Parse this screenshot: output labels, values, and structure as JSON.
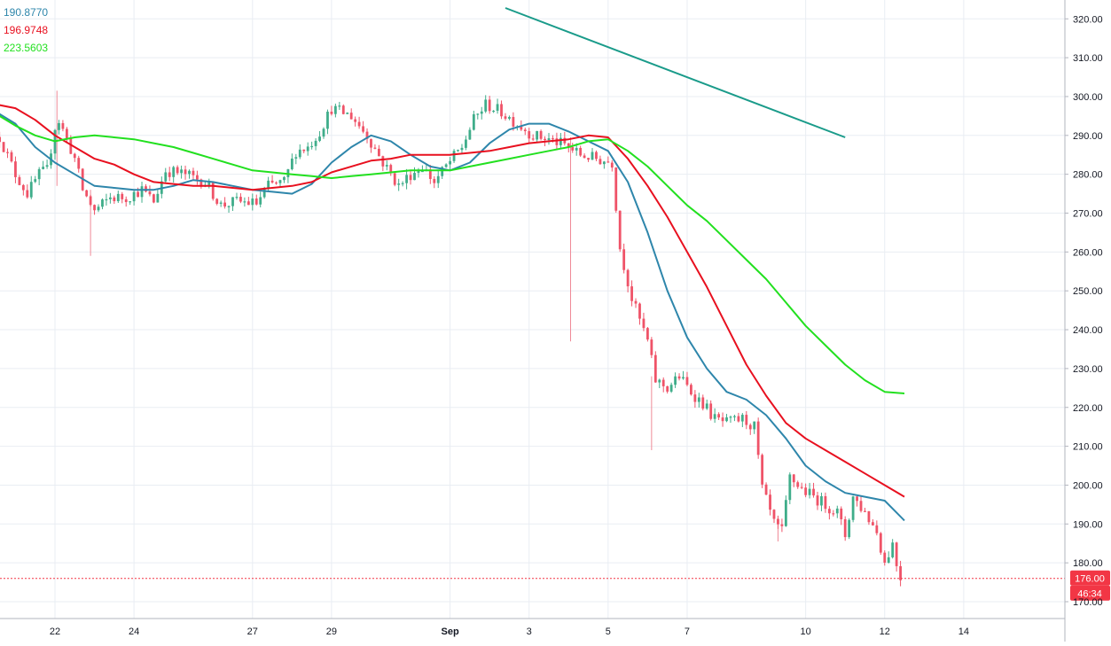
{
  "chart_data": {
    "type": "line",
    "subtype": "candlestick-with-moving-averages",
    "title": "",
    "xlabel": "",
    "ylabel": "",
    "ylim": [
      167,
      323
    ],
    "y_ticks": [
      170,
      180,
      190,
      200,
      210,
      220,
      230,
      240,
      250,
      260,
      270,
      280,
      290,
      300,
      310,
      320
    ],
    "y_tick_labels": [
      "170.00",
      "180.00",
      "190.00",
      "200.00",
      "210.00",
      "220.00",
      "230.00",
      "240.00",
      "250.00",
      "260.00",
      "270.00",
      "280.00",
      "290.00",
      "300.00",
      "310.00",
      "320.00"
    ],
    "x_range": [
      20.6,
      46.0
    ],
    "x_ticks": [
      {
        "x": 22,
        "label": "22"
      },
      {
        "x": 24,
        "label": "24"
      },
      {
        "x": 27,
        "label": "27"
      },
      {
        "x": 29,
        "label": "29"
      },
      {
        "x": 32,
        "label": "Sep"
      },
      {
        "x": 34,
        "label": "3"
      },
      {
        "x": 36,
        "label": "5"
      },
      {
        "x": 38,
        "label": "7"
      },
      {
        "x": 41,
        "label": "10"
      },
      {
        "x": 43,
        "label": "12"
      },
      {
        "x": 45,
        "label": "14"
      }
    ],
    "grid": true,
    "current_price": {
      "value": 176.0,
      "label": "176.00",
      "timer": "46:34",
      "color": "#f23645"
    },
    "legend": [
      {
        "label": "190.8770",
        "color": "#2e86ab"
      },
      {
        "label": "196.9748",
        "color": "#e8101f"
      },
      {
        "label": "223.5603",
        "color": "#22e01f"
      }
    ],
    "candles": [
      [
        20.6,
        289.6
      ],
      [
        21.0,
        280.0
      ],
      [
        21.3,
        275.0
      ],
      [
        21.6,
        280.0
      ],
      [
        21.8,
        281.0
      ],
      [
        22.05,
        295.0
      ],
      [
        22.5,
        284.0
      ],
      [
        22.7,
        276.0
      ],
      [
        23.0,
        270.5
      ],
      [
        23.4,
        274.0
      ],
      [
        23.8,
        274.0
      ],
      [
        24.2,
        276.0
      ],
      [
        24.5,
        273.0
      ],
      [
        24.8,
        281.0
      ],
      [
        25.3,
        280.0
      ],
      [
        25.8,
        278.0
      ],
      [
        26.2,
        272.0
      ],
      [
        26.6,
        273.0
      ],
      [
        27.1,
        272.5
      ],
      [
        27.4,
        277.0
      ],
      [
        27.8,
        278.0
      ],
      [
        28.1,
        286.0
      ],
      [
        28.4,
        287.0
      ],
      [
        28.7,
        291.0
      ],
      [
        29.0,
        297.0
      ],
      [
        29.5,
        295.0
      ],
      [
        29.9,
        290.0
      ],
      [
        30.3,
        283.0
      ],
      [
        30.7,
        277.0
      ],
      [
        31.0,
        280.0
      ],
      [
        31.3,
        282.0
      ],
      [
        31.6,
        278.0
      ],
      [
        31.9,
        282.0
      ],
      [
        32.3,
        287.0
      ],
      [
        32.6,
        294.0
      ],
      [
        32.9,
        298.0
      ],
      [
        33.3,
        296.0
      ],
      [
        33.7,
        293.0
      ],
      [
        34.1,
        290.0
      ],
      [
        34.5,
        289.0
      ],
      [
        34.9,
        287.5
      ],
      [
        35.3,
        285.0
      ],
      [
        35.7,
        284.0
      ],
      [
        36.1,
        283.0
      ],
      [
        36.3,
        261.0
      ],
      [
        36.6,
        248.0
      ],
      [
        37.0,
        237.0
      ],
      [
        37.2,
        227.0
      ],
      [
        37.5,
        225.0
      ],
      [
        37.8,
        228.0
      ],
      [
        38.1,
        224.0
      ],
      [
        38.4,
        221.0
      ],
      [
        38.7,
        217.0
      ],
      [
        39.0,
        216.0
      ],
      [
        39.4,
        217.0
      ],
      [
        39.7,
        215.0
      ],
      [
        39.9,
        199.0
      ],
      [
        40.2,
        190.0
      ],
      [
        40.4,
        188.0
      ],
      [
        40.6,
        202.0
      ],
      [
        40.9,
        199.0
      ],
      [
        41.2,
        197.0
      ],
      [
        41.5,
        195.0
      ],
      [
        41.8,
        193.0
      ],
      [
        42.0,
        187.0
      ],
      [
        42.2,
        197.0
      ],
      [
        42.5,
        193.0
      ],
      [
        42.8,
        188.0
      ],
      [
        43.0,
        180.0
      ],
      [
        43.2,
        185.0
      ],
      [
        43.35,
        177.0
      ],
      [
        43.45,
        176.0
      ]
    ],
    "wicks": [
      {
        "x": 22.05,
        "low": 277.0,
        "high": 301.5
      },
      {
        "x": 22.9,
        "low": 259.0,
        "high": 276.0
      },
      {
        "x": 35.05,
        "low": 237.0,
        "high": 289.5
      },
      {
        "x": 37.1,
        "low": 209.0,
        "high": 228.0
      },
      {
        "x": 40.3,
        "low": 185.5,
        "high": 190.0
      }
    ],
    "series": [
      {
        "name": "",
        "color": "#2e86ab",
        "x": [
          20.6,
          21.0,
          21.5,
          22.0,
          22.5,
          23.0,
          23.5,
          24.0,
          24.5,
          25.0,
          25.5,
          26.0,
          26.5,
          27.0,
          27.5,
          28.0,
          28.5,
          29.0,
          29.5,
          30.0,
          30.5,
          31.0,
          31.5,
          32.0,
          32.5,
          33.0,
          33.5,
          34.0,
          34.5,
          35.0,
          35.5,
          36.0,
          36.5,
          37.0,
          37.5,
          38.0,
          38.5,
          39.0,
          39.5,
          40.0,
          40.5,
          41.0,
          41.5,
          42.0,
          42.5,
          43.0,
          43.5
        ],
        "values": [
          295.5,
          293.0,
          287.0,
          283.0,
          280.0,
          277.0,
          276.5,
          276.0,
          276.0,
          277.0,
          278.5,
          278.0,
          277.0,
          276.0,
          275.5,
          275.0,
          277.5,
          283.0,
          287.0,
          290.0,
          288.5,
          285.0,
          282.0,
          281.0,
          283.0,
          288.0,
          291.5,
          293.0,
          293.0,
          291.0,
          288.5,
          286.0,
          278.0,
          265.0,
          250.0,
          238.0,
          230.0,
          224.0,
          222.0,
          218.0,
          212.0,
          205.0,
          201.0,
          198.0,
          197.0,
          196.0,
          190.9
        ]
      },
      {
        "name": "",
        "color": "#e8101f",
        "x": [
          20.6,
          21.0,
          21.5,
          22.0,
          22.5,
          23.0,
          23.5,
          24.0,
          24.5,
          25.0,
          25.5,
          26.0,
          26.5,
          27.0,
          27.5,
          28.0,
          28.5,
          29.0,
          29.5,
          30.0,
          30.5,
          31.0,
          31.5,
          32.0,
          32.5,
          33.0,
          33.5,
          34.0,
          34.5,
          35.0,
          35.5,
          36.0,
          36.5,
          37.0,
          37.5,
          38.0,
          38.5,
          39.0,
          39.5,
          40.0,
          40.5,
          41.0,
          41.5,
          42.0,
          42.5,
          43.0,
          43.5
        ],
        "values": [
          297.8,
          297.0,
          294.0,
          290.0,
          287.0,
          284.0,
          282.5,
          280.0,
          278.0,
          277.5,
          277.0,
          277.0,
          276.5,
          276.0,
          276.5,
          277.0,
          278.0,
          280.5,
          282.0,
          283.5,
          284.0,
          285.0,
          285.0,
          285.0,
          285.5,
          286.0,
          287.0,
          288.0,
          288.5,
          289.0,
          290.0,
          289.5,
          284.0,
          277.0,
          269.0,
          260.0,
          251.0,
          241.0,
          231.0,
          223.0,
          216.0,
          212.0,
          209.0,
          206.0,
          203.0,
          200.0,
          197.0
        ]
      },
      {
        "name": "",
        "color": "#22e01f",
        "x": [
          20.6,
          21.0,
          21.5,
          22.0,
          22.5,
          23.0,
          23.5,
          24.0,
          24.5,
          25.0,
          25.5,
          26.0,
          26.5,
          27.0,
          27.5,
          28.0,
          28.5,
          29.0,
          29.5,
          30.0,
          30.5,
          31.0,
          31.5,
          32.0,
          32.5,
          33.0,
          33.5,
          34.0,
          34.5,
          35.0,
          35.5,
          36.0,
          36.5,
          37.0,
          37.5,
          38.0,
          38.5,
          39.0,
          39.5,
          40.0,
          40.5,
          41.0,
          41.5,
          42.0,
          42.5,
          43.0,
          43.5
        ],
        "values": [
          295.0,
          292.5,
          290.0,
          288.5,
          289.5,
          290.0,
          289.5,
          289.0,
          288.0,
          287.0,
          285.5,
          284.0,
          282.5,
          281.0,
          280.5,
          280.0,
          279.5,
          279.0,
          279.5,
          280.0,
          280.5,
          281.0,
          281.0,
          281.0,
          282.0,
          283.0,
          284.0,
          285.0,
          286.0,
          287.0,
          288.5,
          289.0,
          286.0,
          282.0,
          277.0,
          272.0,
          268.0,
          263.0,
          258.0,
          253.0,
          247.0,
          241.0,
          236.0,
          231.0,
          227.0,
          224.0,
          223.6
        ]
      },
      {
        "name": "",
        "color": "#1a9b8a",
        "x": [
          33.4,
          42.0
        ],
        "values": [
          322.8,
          289.5
        ]
      }
    ]
  }
}
